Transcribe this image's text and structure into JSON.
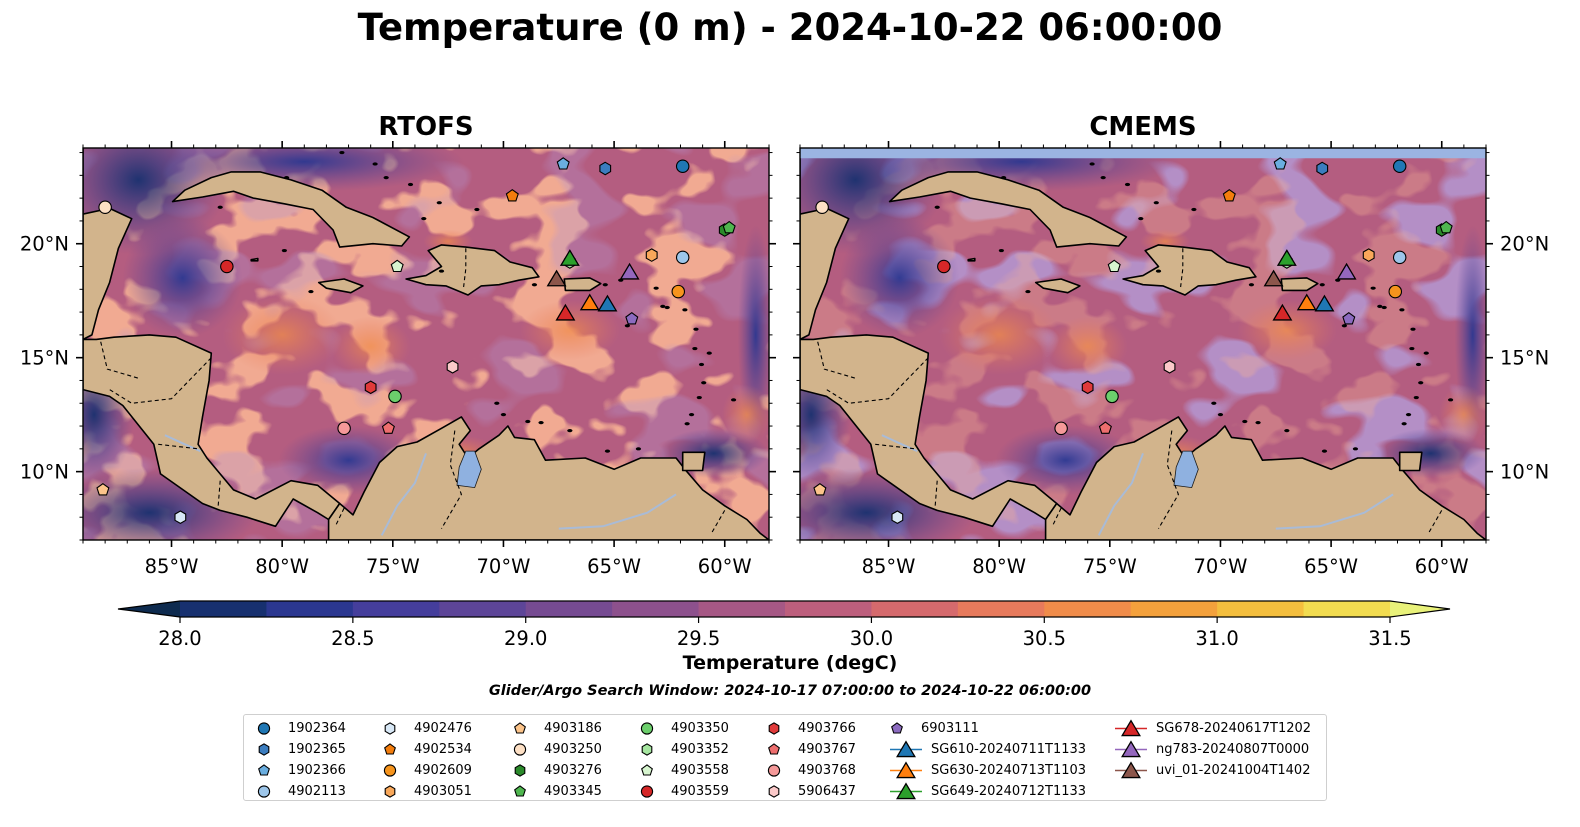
{
  "title": "Temperature (0 m) - 2024-10-22 06:00:00",
  "search_window": "Glider/Argo Search Window: 2024-10-17 07:00:00 to 2024-10-22 06:00:00",
  "chart_data": {
    "type": "map",
    "panels": [
      {
        "name": "RTOFS"
      },
      {
        "name": "CMEMS"
      }
    ],
    "extent": {
      "lon": [
        -89,
        -58
      ],
      "lat": [
        7,
        24.2
      ]
    },
    "lon_ticks": [
      -85,
      -80,
      -75,
      -70,
      -65,
      -60
    ],
    "lon_labels": [
      "85°W",
      "80°W",
      "75°W",
      "70°W",
      "65°W",
      "60°W"
    ],
    "lat_ticks": [
      10,
      15,
      20
    ],
    "lat_labels": [
      "10°N",
      "15°N",
      "20°N"
    ],
    "colorbar": {
      "label": "Temperature (degC)",
      "vmin": 28.0,
      "vmax": 31.5,
      "step": 0.25,
      "ticks": [
        28.0,
        28.5,
        29.0,
        29.5,
        30.0,
        30.5,
        31.0,
        31.5
      ],
      "tick_labels": [
        "28.0",
        "28.5",
        "29.0",
        "29.5",
        "30.0",
        "30.5",
        "31.0",
        "31.5"
      ],
      "colors": [
        "#0e2b4f",
        "#17306f",
        "#2b3790",
        "#453e9c",
        "#5d4598",
        "#764b92",
        "#8d518d",
        "#a65885",
        "#bd5f7d",
        "#d56a6d",
        "#e77a5c",
        "#f08c4a",
        "#f4a13c",
        "#f4be3e",
        "#f2dc50",
        "#e9f27a"
      ]
    },
    "colors": {
      "land": "#d2b48c",
      "ocean_base": "#b45d80",
      "lake": "#8fb1e0",
      "band": "#9bb4e2"
    },
    "markers": [
      {
        "id": "1902364",
        "type": "circle",
        "color": "#1f77b4",
        "lon": -61.9,
        "lat": 23.4
      },
      {
        "id": "1902365",
        "type": "hexagon",
        "color": "#3b7dbf",
        "lon": -65.4,
        "lat": 23.3
      },
      {
        "id": "1902366",
        "type": "pentagon",
        "color": "#6aaee0",
        "lon": -67.3,
        "lat": 23.5
      },
      {
        "id": "4902113",
        "type": "circle",
        "color": "#9dc6ea",
        "lon": -61.9,
        "lat": 19.4
      },
      {
        "id": "4902476",
        "type": "hexagon",
        "color": "#d8e8f6",
        "lon": -84.6,
        "lat": 8.0
      },
      {
        "id": "4902534",
        "type": "pentagon",
        "color": "#f37d0d",
        "lon": -69.6,
        "lat": 22.1
      },
      {
        "id": "4902609",
        "type": "circle",
        "color": "#f6941d",
        "lon": -62.1,
        "lat": 17.9
      },
      {
        "id": "4903051",
        "type": "hexagon",
        "color": "#f9a85a",
        "lon": -63.3,
        "lat": 19.5
      },
      {
        "id": "4903186",
        "type": "pentagon",
        "color": "#fcc48a",
        "lon": -88.1,
        "lat": 9.2
      },
      {
        "id": "4903250",
        "type": "circle",
        "color": "#fde0c5",
        "lon": -88.0,
        "lat": 21.6
      },
      {
        "id": "4903276",
        "type": "hexagon",
        "color": "#2b8a2b",
        "lon": -60.0,
        "lat": 20.6
      },
      {
        "id": "4903345",
        "type": "pentagon",
        "color": "#4fb64f",
        "lon": -59.8,
        "lat": 20.7
      },
      {
        "id": "4903350",
        "type": "circle",
        "color": "#6ccf6c",
        "lon": -74.9,
        "lat": 13.3
      },
      {
        "id": "4903352",
        "type": "hexagon",
        "color": "#a6e6a0",
        "lon": -67.0,
        "lat": 19.2
      },
      {
        "id": "4903558",
        "type": "pentagon",
        "color": "#d7f5cf",
        "lon": -74.8,
        "lat": 19.0
      },
      {
        "id": "4903559",
        "type": "circle",
        "color": "#d62728",
        "lon": -82.5,
        "lat": 19.0
      },
      {
        "id": "4903766",
        "type": "hexagon",
        "color": "#e03a3a",
        "lon": -76.0,
        "lat": 13.7
      },
      {
        "id": "4903767",
        "type": "pentagon",
        "color": "#ee6e6e",
        "lon": -75.2,
        "lat": 11.9
      },
      {
        "id": "4903768",
        "type": "circle",
        "color": "#f59999",
        "lon": -77.2,
        "lat": 11.9
      },
      {
        "id": "5906437",
        "type": "hexagon",
        "color": "#fbc9c9",
        "lon": -72.3,
        "lat": 14.6
      },
      {
        "id": "6903111",
        "type": "pentagon",
        "color": "#8c6bc0",
        "lon": -64.2,
        "lat": 16.7
      },
      {
        "id": "SG610-20240711T1133",
        "type": "triangle",
        "color": "#1f77b4",
        "lon": -65.3,
        "lat": 17.3
      },
      {
        "id": "SG630-20240713T1103",
        "type": "triangle",
        "color": "#ff7f0e",
        "lon": -66.1,
        "lat": 17.35
      },
      {
        "id": "SG649-20240712T1133",
        "type": "triangle",
        "color": "#2ca02c",
        "lon": -67.0,
        "lat": 19.3
      },
      {
        "id": "SG678-20240617T1202",
        "type": "triangle",
        "color": "#d62728",
        "lon": -67.2,
        "lat": 16.9
      },
      {
        "id": "ng783-20240807T0000",
        "type": "triangle",
        "color": "#9467bd",
        "lon": -64.3,
        "lat": 18.7
      },
      {
        "id": "uvi_01-20241004T1402",
        "type": "triangle",
        "color": "#8c564b",
        "lon": -67.6,
        "lat": 18.4
      }
    ]
  }
}
